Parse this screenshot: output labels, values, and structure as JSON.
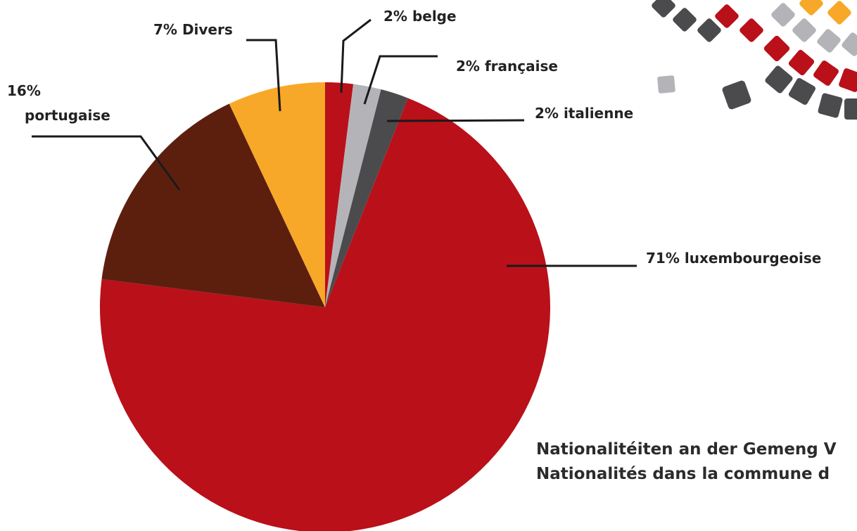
{
  "chart_data": {
    "type": "pie",
    "title_lines": [
      "Nationalitéiten an der Gemeng V",
      "Nationalités dans la commune d"
    ],
    "categories": [
      "belge",
      "française",
      "italienne",
      "luxembourgeoise",
      "portugaise",
      "Divers"
    ],
    "values": [
      2,
      2,
      2,
      71,
      16,
      7
    ],
    "value_labels": [
      "2%",
      "2%",
      "2%",
      "71%",
      "16%",
      "7%"
    ],
    "colors": [
      "#b9101a",
      "#b4b4b8",
      "#4b4b4d",
      "#b9101a",
      "#5c1f0e",
      "#f8a828"
    ]
  }
}
